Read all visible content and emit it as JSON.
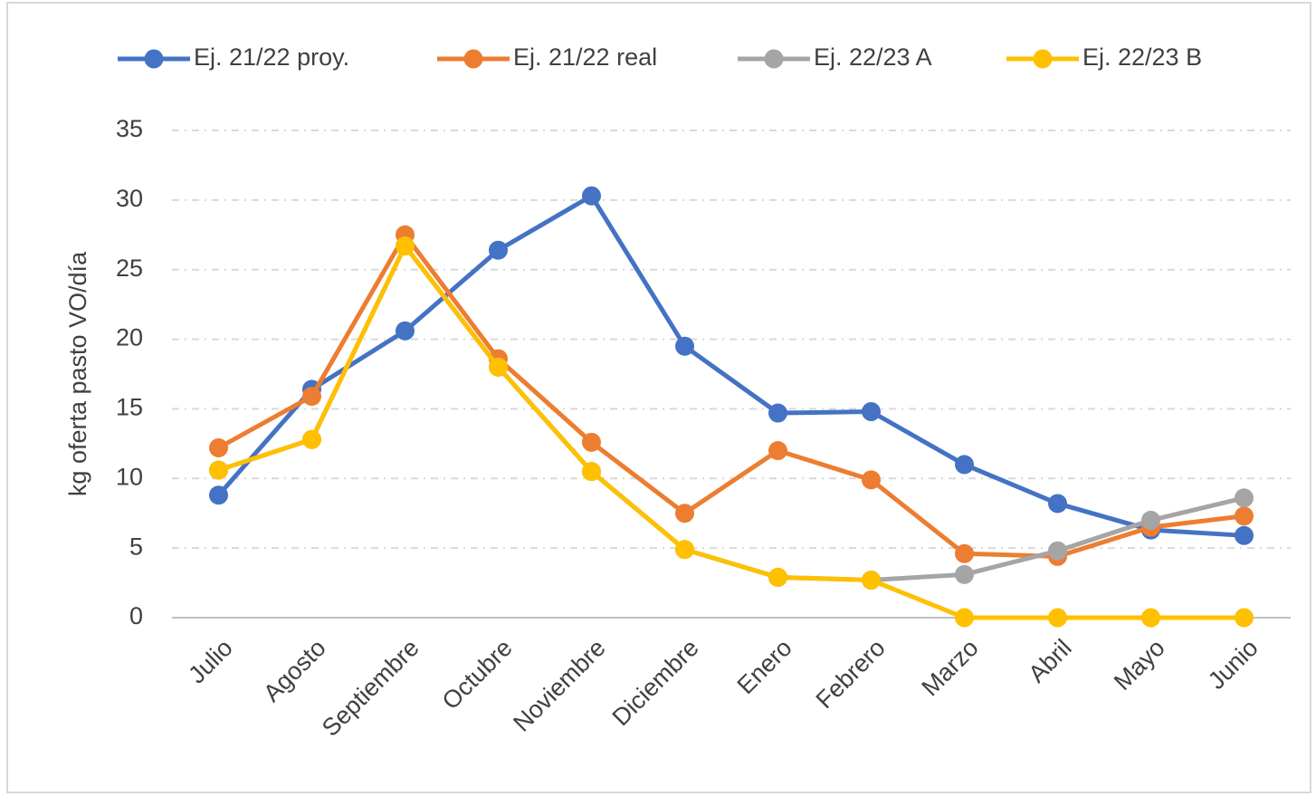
{
  "chart_data": {
    "type": "line",
    "y_label": "kg oferta pasto VO/día",
    "categories": [
      "Julio",
      "Agosto",
      "Septiembre",
      "Octubre",
      "Noviembre",
      "Diciembre",
      "Enero",
      "Febrero",
      "Marzo",
      "Abril",
      "Mayo",
      "Junio"
    ],
    "series": [
      {
        "name": "Ej. 21/22 proy.",
        "color": "#4472c4",
        "values": [
          8.8,
          16.4,
          20.6,
          26.4,
          30.3,
          19.5,
          14.7,
          14.8,
          11.0,
          8.2,
          6.3,
          5.9
        ]
      },
      {
        "name": "Ej. 21/22 real",
        "color": "#ed7d31",
        "values": [
          12.2,
          15.9,
          27.5,
          18.6,
          12.6,
          7.5,
          12.0,
          9.9,
          4.6,
          4.4,
          6.5,
          7.3
        ]
      },
      {
        "name": "Ej. 22/23 A",
        "color": "#a5a5a5",
        "values": [
          10.6,
          12.8,
          26.7,
          18.0,
          10.5,
          4.9,
          2.9,
          2.7,
          3.1,
          4.8,
          7.0,
          8.6
        ]
      },
      {
        "name": "Ej. 22/23 B",
        "color": "#ffc000",
        "values": [
          10.6,
          12.8,
          26.7,
          18.0,
          10.5,
          4.9,
          2.9,
          2.7,
          0,
          0,
          0,
          0
        ]
      }
    ],
    "ylim": [
      0,
      35
    ],
    "yticks": [
      0,
      5,
      10,
      15,
      20,
      25,
      30,
      35
    ],
    "grid": true,
    "legend": "top"
  }
}
